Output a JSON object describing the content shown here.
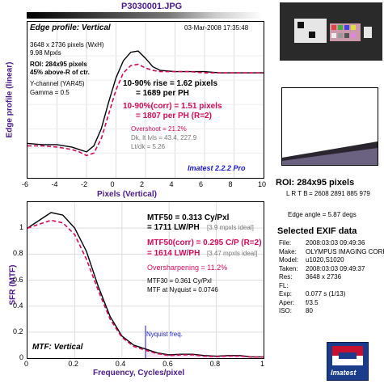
{
  "file_title": "P3030001.JPG",
  "top": {
    "heading": "Edge profile: Vertical",
    "date": "03-Mar-2008 17:35:48",
    "dims": "3648 x 2736 pixels (WxH)",
    "mpxls": "9.98 Mpxls",
    "roi1": "ROI: 284x95 pixels",
    "roi2": "45% above-R of ctr.",
    "ychannel": "Y-channel  (YAR45)",
    "gamma": "Gamma = 0.5",
    "rise1": "10-90% rise = 1.62 pixels",
    "rise2": "= 1689 per PH",
    "corr1": "10-90%(corr) = 1.51 pixels",
    "corr2": "= 1807 per PH  (R=2)",
    "overshoot": "Overshoot = 21.2%",
    "dk": "Dk, lt lvls = 43.4, 227.9",
    "ltdk": "Lt/dk = 5.26",
    "imatest_ver": "Imatest 2.2.2 Pro",
    "ylabel": "Edge profile (linear)",
    "xlabel": "Pixels (Vertical)",
    "xticks": [
      "-6",
      "-4",
      "-2",
      "0",
      "2",
      "4",
      "6",
      "8",
      "10"
    ]
  },
  "bottom": {
    "mtf50": "MTF50 = 0.313 Cy/Pxl",
    "mtf50_lw": "= 1711 LW/PH",
    "mtf50_ideal": "[3.9 mpxls ideal]",
    "mtf50c": "MTF50(corr) = 0.295 C/P  (R=2)",
    "mtf50c_lw": "= 1614 LW/PH",
    "mtf50c_ideal": "[3.47 mpxls ideal]",
    "oversharp": "Oversharpening = 11.2%",
    "mtf30": "MTF30 = 0.361 Cy/Pxl",
    "nyq": "MTF at Nyquist = 0.0746",
    "nyq_label": "Nyquist freq.",
    "label": "MTF: Vertical",
    "ylabel": "SFR (MTF)",
    "xlabel": "Frequency, Cycles/pixel",
    "xticks": [
      "0",
      "0.2",
      "0.4",
      "0.6",
      "0.8",
      "1"
    ],
    "yticks": [
      "0",
      "0.2",
      "0.4",
      "0.6",
      "0.8",
      "1"
    ]
  },
  "right": {
    "roi": "ROI: 284x95 pixels",
    "lrtb_label": "L R T B",
    "lrtb": "= 2608 2891  885 979",
    "edge_angle": "Edge angle = 5.87 degs",
    "exif_title": "Selected EXIF data",
    "exif": [
      {
        "k": "File:",
        "v": "2008:03:03 09:49:36"
      },
      {
        "k": "Make:",
        "v": "OLYMPUS IMAGING CORP."
      },
      {
        "k": "Model:",
        "v": "u1020,S1020"
      },
      {
        "k": "Taken:",
        "v": "2008:03:03 09:49:37"
      },
      {
        "k": "Res:",
        "v": "3648 x 2736"
      },
      {
        "k": "FL:",
        "v": ""
      },
      {
        "k": "Exp:",
        "v": "0.077 s (1/13)"
      },
      {
        "k": "Aper:",
        "v": "f/3.5"
      },
      {
        "k": "ISO:",
        "v": "80"
      }
    ],
    "logo": "Imatest"
  },
  "colors": {
    "black": "#000000",
    "magenta": "#d10a5a",
    "blue": "#1a1acc",
    "shade": "#f3e4f1"
  },
  "chart_data": [
    {
      "type": "line",
      "xlabel": "Pixels (Vertical)",
      "ylabel": "Edge profile (linear)",
      "xlim": [
        -6,
        10
      ],
      "x": [
        -6,
        -5,
        -4,
        -3.5,
        -3,
        -2.5,
        -2,
        -1.5,
        -1,
        -0.5,
        0,
        0.5,
        1,
        1.5,
        2,
        2.5,
        3,
        4,
        5,
        6,
        7,
        8,
        9,
        10
      ],
      "series": [
        {
          "values": [
            0.38,
            0.37,
            0.37,
            0.36,
            0.35,
            0.33,
            0.31,
            0.36,
            0.5,
            0.72,
            0.92,
            1.06,
            1.13,
            1.14,
            1.08,
            1.01,
            0.98,
            0.97,
            0.97,
            0.97,
            0.96,
            0.96,
            0.96,
            0.96
          ]
        },
        {
          "values": [
            0.36,
            0.36,
            0.35,
            0.34,
            0.33,
            0.31,
            0.28,
            0.3,
            0.42,
            0.62,
            0.82,
            0.96,
            1.02,
            1.03,
            1.0,
            0.98,
            0.97,
            0.97,
            0.97,
            0.96,
            0.96,
            0.96,
            0.96,
            0.96
          ]
        }
      ]
    },
    {
      "type": "line",
      "xlabel": "Frequency, Cycles/pixel",
      "ylabel": "SFR (MTF)",
      "xlim": [
        0,
        1
      ],
      "ylim": [
        0,
        1.2
      ],
      "x": [
        0,
        0.05,
        0.1,
        0.15,
        0.2,
        0.25,
        0.3,
        0.35,
        0.4,
        0.45,
        0.5,
        0.55,
        0.6,
        0.65,
        0.7,
        0.75,
        0.8,
        0.85,
        0.9,
        0.95,
        1.0
      ],
      "series": [
        {
          "values": [
            1.0,
            1.06,
            1.12,
            1.1,
            1.0,
            0.82,
            0.55,
            0.32,
            0.17,
            0.1,
            0.07,
            0.04,
            0.025,
            0.03,
            0.03,
            0.02,
            0.015,
            0.02,
            0.02,
            0.01,
            0.01
          ]
        },
        {
          "values": [
            1.0,
            1.03,
            1.06,
            1.04,
            0.95,
            0.76,
            0.52,
            0.3,
            0.16,
            0.09,
            0.06,
            0.035,
            0.02,
            0.025,
            0.025,
            0.015,
            0.012,
            0.016,
            0.016,
            0.008,
            0.008
          ]
        }
      ]
    }
  ]
}
